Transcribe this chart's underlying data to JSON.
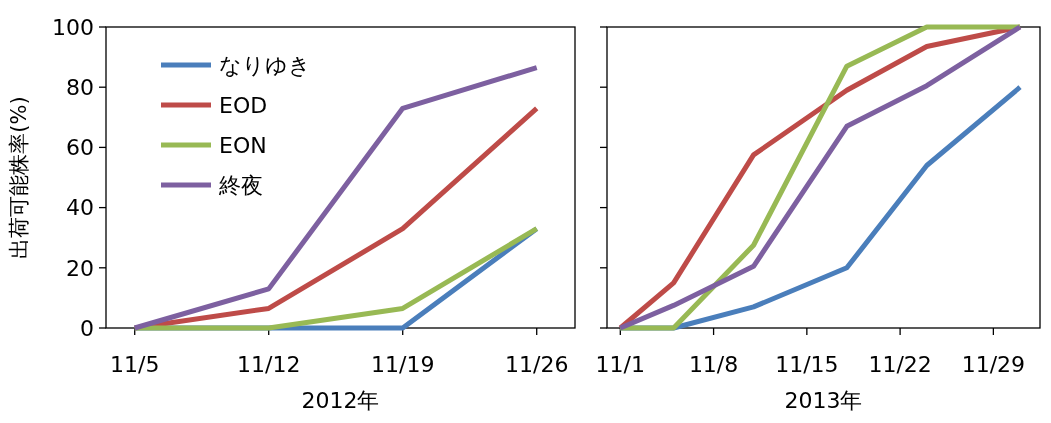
{
  "chart_data": [
    {
      "type": "line",
      "xlabel": "2012年",
      "ylabel": "出荷可能株率(%)",
      "x": [
        "2012-11-05",
        "2012-11-12",
        "2012-11-19",
        "2012-11-26"
      ],
      "xlim": [
        "2012-11-03T12:00",
        "2012-11-28"
      ],
      "xticks": [
        {
          "value": "2012-11-05",
          "label": "11/5"
        },
        {
          "value": "2012-11-12",
          "label": "11/12"
        },
        {
          "value": "2012-11-19",
          "label": "11/19"
        },
        {
          "value": "2012-11-26",
          "label": "11/26"
        }
      ],
      "ylim": [
        0,
        100
      ],
      "yticks": [
        0,
        20,
        40,
        60,
        80,
        100
      ],
      "grid": false,
      "legend": "top left",
      "marker": "none",
      "line_style": "solid",
      "series": [
        {
          "name": "なりゆき",
          "color": "#4a7ebb",
          "values": [
            0,
            0,
            0,
            33
          ]
        },
        {
          "name": "EOD",
          "color": "#be4b48",
          "values": [
            0,
            6.5,
            33,
            73
          ]
        },
        {
          "name": "EON",
          "color": "#98b954",
          "values": [
            0,
            0,
            6.5,
            33
          ]
        },
        {
          "name": "終夜",
          "color": "#7d60a0",
          "values": [
            0,
            13,
            73,
            86.5
          ]
        }
      ]
    },
    {
      "type": "line",
      "xlabel": "2013年",
      "x": [
        "2013-11-01",
        "2013-11-05",
        "2013-11-11",
        "2013-11-18",
        "2013-11-24",
        "2013-12-01"
      ],
      "xlim": [
        "2013-10-31",
        "2013-12-02T12:00"
      ],
      "xticks": [
        {
          "value": "2013-11-01",
          "label": "11/1"
        },
        {
          "value": "2013-11-08",
          "label": "11/8"
        },
        {
          "value": "2013-11-15",
          "label": "11/15"
        },
        {
          "value": "2013-11-22",
          "label": "11/22"
        },
        {
          "value": "2013-11-29",
          "label": "11/29"
        }
      ],
      "ylim": [
        0,
        100
      ],
      "yticks": [
        0,
        20,
        40,
        60,
        80,
        100
      ],
      "tick_labels": "x",
      "grid": false,
      "marker": "none",
      "line_style": "solid",
      "series": [
        {
          "color": "#4a7ebb",
          "values": [
            0,
            0,
            7,
            20,
            54,
            80
          ]
        },
        {
          "color": "#be4b48",
          "values": [
            0,
            15,
            57.5,
            79,
            93.5,
            100
          ]
        },
        {
          "color": "#98b954",
          "values": [
            0,
            0,
            27.5,
            87,
            100,
            100
          ]
        },
        {
          "color": "#7d60a0",
          "values": [
            0,
            7.5,
            20.5,
            67,
            80.5,
            100
          ]
        }
      ]
    }
  ]
}
